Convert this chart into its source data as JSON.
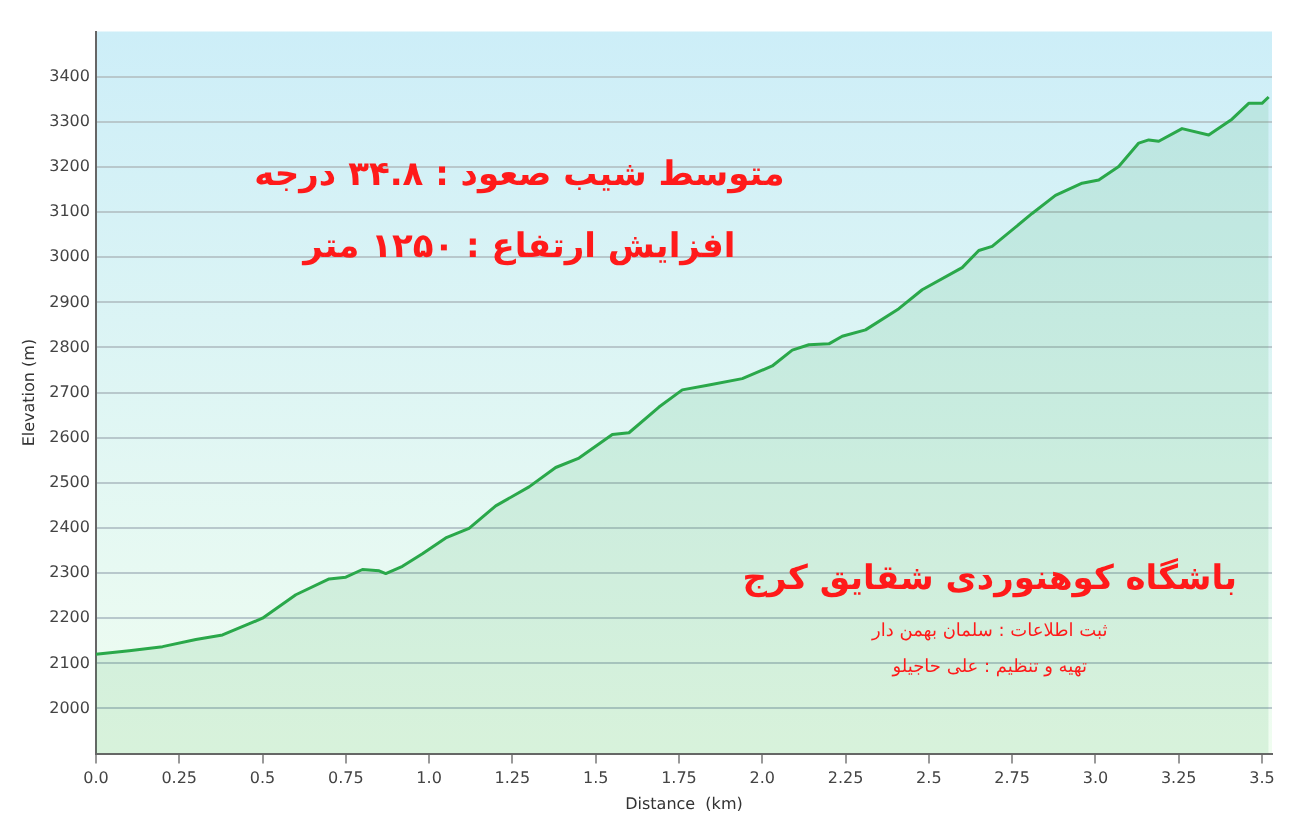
{
  "chart_data": {
    "type": "area",
    "xlabel": "Distance  (km)",
    "ylabel": "Elevation (m)",
    "annotations": [
      "متوسط شیب صعود : ۳۴.۸ درجه",
      "افزایش ارتفاع : ۱۲۵۰ متر",
      "باشگاه کوهنوردی شقایق کرج",
      "ثبت اطلاعات : سلمان بهمن دار",
      "تهیه و تنظیم : علی حاجیلو"
    ],
    "series": [
      {
        "color": "#2aa84a",
        "x": [
          0,
          0.1,
          0.2,
          0.3,
          0.38,
          0.5,
          0.6,
          0.7,
          0.75,
          0.8,
          0.85,
          0.87,
          0.92,
          0.98,
          1.05,
          1.12,
          1.2,
          1.3,
          1.38,
          1.45,
          1.55,
          1.6,
          1.69,
          1.76,
          1.84,
          1.94,
          2.03,
          2.09,
          2.14,
          2.2,
          2.24,
          2.31,
          2.41,
          2.48,
          2.6,
          2.65,
          2.69,
          2.81,
          2.88,
          2.96,
          3.01,
          3.07,
          3.13,
          3.16,
          3.19,
          3.26,
          3.34,
          3.41,
          3.46,
          3.5,
          3.52
        ],
        "values": [
          2120,
          2128,
          2137,
          2153,
          2163,
          2200,
          2252,
          2287,
          2291,
          2308,
          2305,
          2299,
          2315,
          2343,
          2378,
          2399,
          2449,
          2491,
          2534,
          2555,
          2607,
          2611,
          2668,
          2706,
          2717,
          2731,
          2759,
          2794,
          2806,
          2808,
          2825,
          2839,
          2886,
          2928,
          2977,
          3015,
          3024,
          3097,
          3137,
          3164,
          3171,
          3201,
          3253,
          3260,
          3257,
          3285,
          3271,
          3306,
          3341,
          3341,
          3355
        ]
      }
    ],
    "xlim": [
      0,
      3.53
    ],
    "xticks": [
      {
        "value": 0,
        "label": "0.0"
      },
      0.25,
      0.5,
      0.75,
      {
        "value": 1,
        "label": "1.0"
      },
      1.25,
      1.5,
      1.75,
      {
        "value": 2,
        "label": "2.0"
      },
      2.25,
      2.5,
      2.75,
      {
        "value": 3,
        "label": "3.0"
      },
      3.25,
      3.5
    ],
    "ylim": [
      1900,
      3500
    ],
    "yticks": [
      2000,
      2100,
      2200,
      2300,
      2400,
      2500,
      2600,
      2700,
      2800,
      2900,
      3000,
      3100,
      3200,
      3300,
      3400
    ],
    "grid": "y",
    "legend": false
  }
}
